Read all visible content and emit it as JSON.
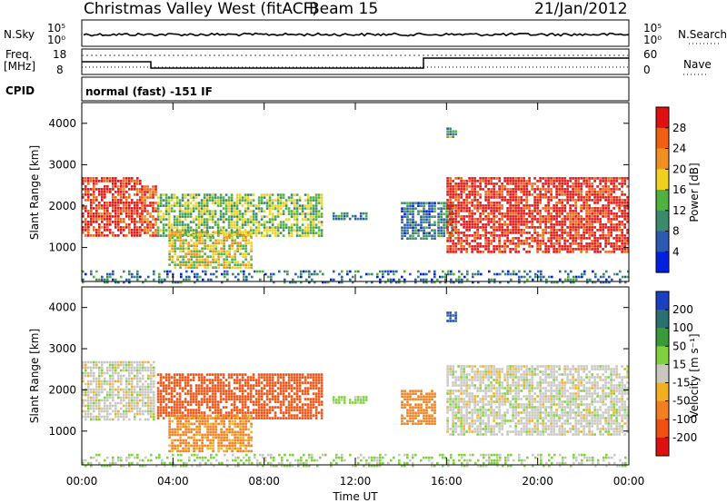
{
  "header": {
    "title": "Christmas Valley West (fitACF)",
    "beam": "Beam 15",
    "date": "21/Jan/2012"
  },
  "summary_panels": {
    "nsky": {
      "label": "N.Sky",
      "tick_top": "10^5",
      "tick_bottom": "10^0"
    },
    "nsearch": {
      "label": "N.Search",
      "tick_top": "10^5",
      "tick_bottom": "10^0"
    },
    "freq": {
      "label_line1": "Freq.",
      "label_line2": "[MHz]",
      "tick_top": "18",
      "tick_bottom": "8"
    },
    "nave": {
      "label": "Nave",
      "tick_top": "60",
      "tick_bottom": "0"
    },
    "cpid": {
      "label": "CPID",
      "value": "normal (fast) -151 IF"
    }
  },
  "chart_data": [
    {
      "type": "heatmap",
      "title": "",
      "xlabel": "",
      "ylabel": "Slant Range [km]",
      "x_ticks": [
        "00:00",
        "04:00",
        "08:00",
        "12:00",
        "16:00",
        "20:00",
        "00:00"
      ],
      "x_range_hours": [
        0,
        24
      ],
      "ylim": [
        180,
        4500
      ],
      "y_ticks": [
        1000,
        2000,
        3000,
        4000
      ],
      "grid": false,
      "colorbar": {
        "label": "Power [dB]",
        "ticks": [
          "4",
          "8",
          "12",
          "16",
          "20",
          "24",
          "28"
        ],
        "range": [
          0,
          32
        ],
        "colors": [
          "#0020e0",
          "#2c5ab0",
          "#3b8a6a",
          "#50b040",
          "#f0d020",
          "#f09020",
          "#f06010",
          "#e01010"
        ]
      },
      "echo_regions": [
        {
          "t_start": 0.0,
          "t_end": 2.6,
          "r_min": 1300,
          "r_max": 2700,
          "intensity": 0.92
        },
        {
          "t_start": 2.6,
          "t_end": 3.2,
          "r_min": 1300,
          "r_max": 2500,
          "intensity": 0.85
        },
        {
          "t_start": 3.3,
          "t_end": 10.5,
          "r_min": 1300,
          "r_max": 2300,
          "intensity": 0.45
        },
        {
          "t_start": 3.8,
          "t_end": 7.5,
          "r_min": 500,
          "r_max": 1400,
          "intensity": 0.55
        },
        {
          "t_start": 11.0,
          "t_end": 12.5,
          "r_min": 1700,
          "r_max": 1850,
          "intensity": 0.3
        },
        {
          "t_start": 14.0,
          "t_end": 15.5,
          "r_min": 1200,
          "r_max": 2100,
          "intensity": 0.25
        },
        {
          "t_start": 15.6,
          "t_end": 16.2,
          "r_min": 1300,
          "r_max": 2100,
          "intensity": 0.3
        },
        {
          "t_start": 16.0,
          "t_end": 24.0,
          "r_min": 900,
          "r_max": 2700,
          "intensity": 0.95
        },
        {
          "t_start": 16.0,
          "t_end": 16.4,
          "r_min": 3700,
          "r_max": 3900,
          "intensity": 0.35
        },
        {
          "t_start": 0.0,
          "t_end": 24.0,
          "r_min": 180,
          "r_max": 450,
          "intensity": 0.25
        }
      ]
    },
    {
      "type": "heatmap",
      "title": "",
      "xlabel": "Time UT",
      "ylabel": "Slant Range [km]",
      "x_ticks": [
        "00:00",
        "04:00",
        "08:00",
        "12:00",
        "16:00",
        "20:00",
        "00:00"
      ],
      "x_range_hours": [
        0,
        24
      ],
      "ylim": [
        180,
        4500
      ],
      "y_ticks": [
        1000,
        2000,
        3000,
        4000
      ],
      "grid": false,
      "colorbar": {
        "label": "Velocity [m s⁻¹]",
        "ticks": [
          "200",
          "100",
          "50",
          "15",
          "-15",
          "-50",
          "-100",
          "-200"
        ],
        "range": [
          -250,
          250
        ],
        "colors": [
          "#1a40c0",
          "#2a7070",
          "#3a9a3a",
          "#80d040",
          "#c8c8c0",
          "#f0b020",
          "#f08020",
          "#f05010",
          "#e01010"
        ]
      },
      "echo_regions": [
        {
          "t_start": 0.0,
          "t_end": 3.2,
          "r_min": 1300,
          "r_max": 2700,
          "velocity": 0
        },
        {
          "t_start": 3.3,
          "t_end": 10.5,
          "r_min": 1300,
          "r_max": 2400,
          "velocity": -130
        },
        {
          "t_start": 3.8,
          "t_end": 7.5,
          "r_min": 500,
          "r_max": 1400,
          "velocity": -60
        },
        {
          "t_start": 11.0,
          "t_end": 12.5,
          "r_min": 1700,
          "r_max": 1850,
          "velocity": 30
        },
        {
          "t_start": 14.0,
          "t_end": 15.5,
          "r_min": 1200,
          "r_max": 2000,
          "velocity": -70
        },
        {
          "t_start": 16.0,
          "t_end": 24.0,
          "r_min": 900,
          "r_max": 2600,
          "velocity": 0
        },
        {
          "t_start": 16.0,
          "t_end": 16.4,
          "r_min": 3700,
          "r_max": 3900,
          "velocity": 200
        },
        {
          "t_start": 0.0,
          "t_end": 24.0,
          "r_min": 180,
          "r_max": 450,
          "velocity": 20
        }
      ]
    }
  ]
}
